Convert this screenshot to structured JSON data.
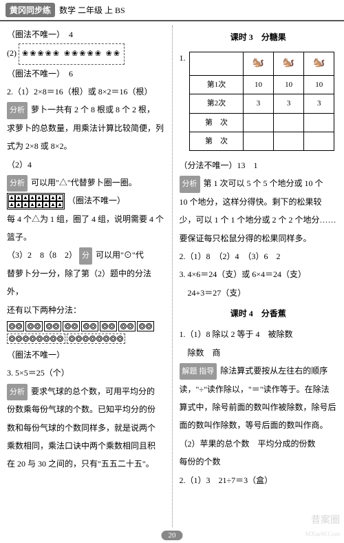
{
  "header": {
    "brand": "黄冈同步练",
    "subject": "数学 二年级 上 BS"
  },
  "left": {
    "l1": "（圈法不唯一）　4",
    "l2_prefix": "(2)",
    "l2_items": "❀❀❀❀❀ ❀❀❀❀❀ ❀❀",
    "l3": "（圈法不唯一）　6",
    "l4": "2.（1）2×8＝16（根）或 8×2＝16（根）",
    "l5": "萝卜一共有 2 个 8 根或 8 个 2 根，",
    "l6": "求萝卜的总数量，用乘法计算比较简便，列",
    "l7": "式为 2×8 或 8×2。",
    "l8": "（2）4",
    "l9": "可以用\"△\"代替萝卜圈一圈。",
    "l10a": "△△△△",
    "l10b": "（圈法不唯一）",
    "l11": "每 4 个△为 1 组，圈了 4 组，说明需要 4 个",
    "l12": "篮子。",
    "l13": "（3）2　8（8　2）",
    "l13b": "可以用\"⊙\"代",
    "l14": "替萝卜分一分，除了第（2）题中的分法外，",
    "l15": "还有以下两种分法：",
    "l16": "（圈法不唯一）",
    "l17": "3. 5×5＝25（个）",
    "l18": "要求气球的总个数，可用平均分的",
    "l19": "份数乘每份气球的个数。已知平均分的份",
    "l20": "数和每份气球的个数同样多，就是说两个",
    "l21": "乘数相同，乘法口诀中两个乘数相同且积",
    "l22": "在 20 与 30 之间的，只有\"五五二十五\"。",
    "tag_analysis": "分析",
    "tag_hint": "分"
  },
  "right": {
    "title1": "课时 3　分糖果",
    "q1": "1.",
    "table": {
      "rows": [
        "第1次",
        "第2次",
        "第　次",
        "第　次"
      ],
      "r1": [
        "10",
        "10",
        "10"
      ],
      "r2": [
        "3",
        "3",
        "3"
      ],
      "r3": [
        "",
        "",
        ""
      ],
      "r4": [
        "",
        "",
        ""
      ]
    },
    "r1": "（分法不唯一）13　1",
    "r2": "第 1 次可以 5 个 5 个地分或 10 个",
    "r3": "10 个地分，这样分得快。剩下的松果较",
    "r4": "少，可以 1 个 1 个地分或 2 个 2 个地分……",
    "r5": "要保证每只松鼠分得的松果同样多。",
    "r6": "2.（1）8　（2）4　（3）6　2",
    "r7": "3. 4×6＝24（支）或 6×4＝24（支）",
    "r8": "　24+3＝27（支）",
    "title2": "课时 4　分香蕉",
    "r9": "1.（1）8 除以 2 等于 4　被除数",
    "r10": "　除数　商",
    "r11": "除法算式要按从左往右的顺序",
    "r12": "读，\"÷\"读作除以，\"＝\"读作等于。在除法",
    "r13": "算式中，除号前面的数叫作被除数，除号后",
    "r14": "面的数叫作除数，等号后面的数叫作商。",
    "r15": "（2）苹果的总个数　平均分成的份数",
    "r16": "每份的个数",
    "r17": "2.（1）3　21÷7＝3（盒）",
    "tag_analysis": "分析",
    "tag_guide": "解题 指导"
  },
  "pagenum": "20",
  "watermark": {
    "text": "昔案圈",
    "sub": "MXueW.Com"
  }
}
